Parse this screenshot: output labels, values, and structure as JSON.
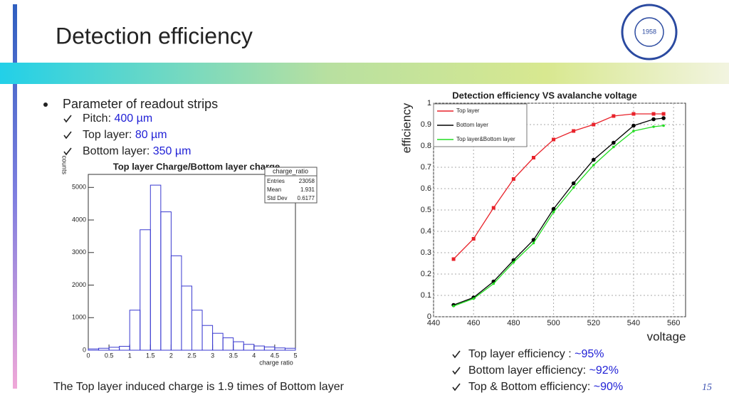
{
  "header": {
    "title": "Detection efficiency",
    "logo_year": "1958",
    "page_number": "15"
  },
  "parameters": {
    "heading": "Parameter of readout strips",
    "items": [
      {
        "label": "Pitch: ",
        "value": "400 µm"
      },
      {
        "label": "Top layer: ",
        "value": "80 µm"
      },
      {
        "label": "Bottom layer: ",
        "value": "350 µm"
      }
    ]
  },
  "note": "The Top layer induced charge is 1.9 times of Bottom layer",
  "results": [
    {
      "label": "Top layer efficiency : ",
      "value": "~95%"
    },
    {
      "label": "Bottom layer efficiency: ",
      "value": "~92%"
    },
    {
      "label": "Top & Bottom efficiency: ",
      "value": "~90%"
    }
  ],
  "chart_data": [
    {
      "type": "histogram",
      "title": "Top layer Charge/Bottom layer charge",
      "x_label": "charge ratio",
      "y_label": "counts",
      "color": "#3a3ad0",
      "stats": {
        "name": "charge_ratio",
        "rows": [
          [
            "Entries",
            "23058"
          ],
          [
            "Mean",
            "1.931"
          ],
          [
            "Std Dev",
            "0.6177"
          ]
        ]
      },
      "bins": [
        0,
        0.25,
        0.5,
        0.75,
        1,
        1.25,
        1.5,
        1.75,
        2,
        2.25,
        2.5,
        2.75,
        3,
        3.25,
        3.5,
        3.75,
        4,
        4.25,
        4.5,
        4.75,
        5
      ],
      "values": [
        40,
        60,
        90,
        120,
        1230,
        3700,
        5070,
        4250,
        2900,
        1970,
        1230,
        760,
        520,
        380,
        260,
        180,
        130,
        100,
        70,
        60
      ],
      "xlim": [
        0,
        5
      ],
      "xticks": [
        0,
        0.5,
        1,
        1.5,
        2,
        2.5,
        3,
        3.5,
        4,
        4.5,
        5
      ],
      "ylim": [
        0,
        5400
      ],
      "yticks": [
        0,
        1000,
        2000,
        3000,
        4000,
        5000
      ]
    },
    {
      "type": "line",
      "title": "Detection efficiency VS avalanche voltage",
      "x_label": "voltage",
      "y_label": "efficiency",
      "grid": true,
      "legend": "top-left",
      "x": [
        450,
        460,
        470,
        480,
        490,
        500,
        510,
        520,
        530,
        540,
        550,
        555
      ],
      "series": [
        {
          "name": "Top layer",
          "color": "#e8222a",
          "marker": "square",
          "values": [
            0.27,
            0.365,
            0.51,
            0.645,
            0.745,
            0.83,
            0.87,
            0.9,
            0.94,
            0.95,
            0.95,
            0.95
          ]
        },
        {
          "name": "Bottom layer",
          "color": "#000000",
          "marker": "circle",
          "values": [
            0.055,
            0.09,
            0.165,
            0.265,
            0.36,
            0.505,
            0.625,
            0.735,
            0.815,
            0.895,
            0.925,
            0.93
          ]
        },
        {
          "name": "Top layer&Bottom layer",
          "color": "#22dd22",
          "marker": "dot",
          "values": [
            0.05,
            0.085,
            0.155,
            0.255,
            0.345,
            0.49,
            0.605,
            0.71,
            0.795,
            0.87,
            0.89,
            0.895
          ]
        }
      ],
      "xlim": [
        440,
        566
      ],
      "xticks": [
        440,
        460,
        480,
        500,
        520,
        540,
        560
      ],
      "ylim": [
        0,
        1
      ],
      "yticks": [
        0,
        0.1,
        0.2,
        0.3,
        0.4,
        0.5,
        0.6,
        0.7,
        0.8,
        0.9,
        1
      ]
    }
  ]
}
